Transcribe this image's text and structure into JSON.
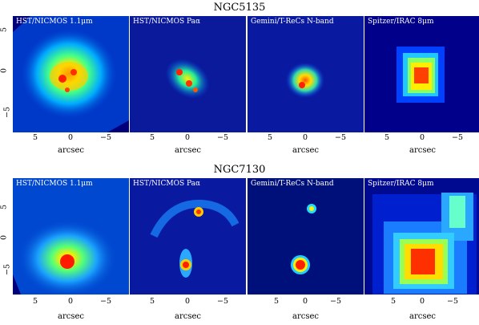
{
  "rows": [
    {
      "title": "NGC5135",
      "panels": [
        {
          "label": "HST/NICMOS 1.1μm",
          "type": "spiral"
        },
        {
          "label": "HST/NICMOS Paα",
          "type": "knots"
        },
        {
          "label": "Gemini/T-ReCs N-band",
          "type": "compact"
        },
        {
          "label": "Spitzer/IRAC 8μm",
          "type": "pixel-blob"
        }
      ],
      "xticks": [
        "5",
        "0",
        "−5"
      ],
      "xlabel": "arcsec",
      "yticks": [
        "5",
        "0",
        "−5"
      ]
    },
    {
      "title": "NGC7130",
      "panels": [
        {
          "label": "HST/NICMOS 1.1μm",
          "type": "galaxy-wide"
        },
        {
          "label": "HST/NICMOS Paα",
          "type": "arc"
        },
        {
          "label": "Gemini/T-ReCs N-band",
          "type": "point"
        },
        {
          "label": "Spitzer/IRAC 8μm",
          "type": "pixel-arc"
        }
      ],
      "xticks": [
        "5",
        "0",
        "−5"
      ],
      "xlabel": "arcsec",
      "yticks": [
        "5",
        "0",
        "−5"
      ]
    }
  ]
}
